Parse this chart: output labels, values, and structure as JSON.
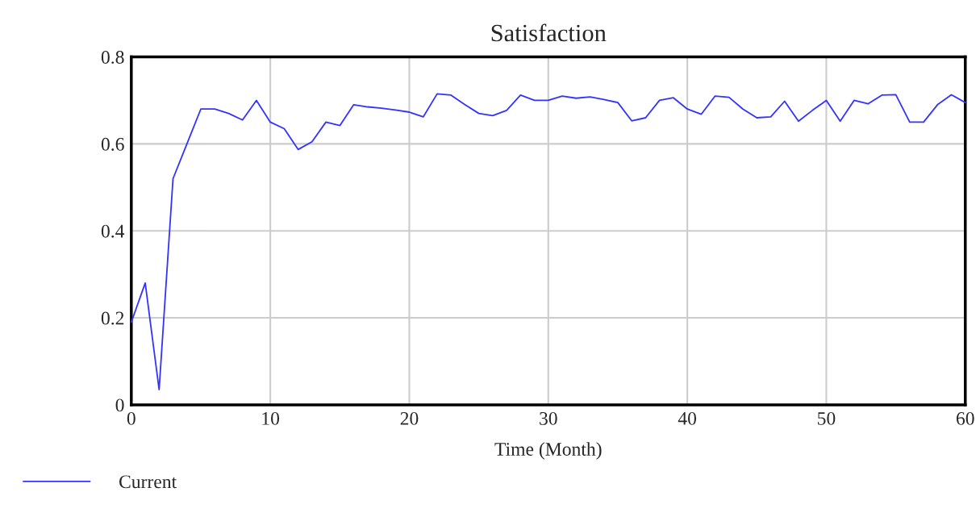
{
  "chart_data": {
    "type": "line",
    "title": "Satisfaction",
    "xlabel": "Time (Month)",
    "x": [
      0,
      1,
      2,
      3,
      4,
      5,
      6,
      7,
      8,
      9,
      10,
      11,
      12,
      13,
      14,
      15,
      16,
      17,
      18,
      19,
      20,
      21,
      22,
      23,
      24,
      25,
      26,
      27,
      28,
      29,
      30,
      31,
      32,
      33,
      34,
      35,
      36,
      37,
      38,
      39,
      40,
      41,
      42,
      43,
      44,
      45,
      46,
      47,
      48,
      49,
      50,
      51,
      52,
      53,
      54,
      55,
      56,
      57,
      58,
      59,
      60
    ],
    "series": [
      {
        "name": "Current",
        "color": "#3333ff",
        "values": [
          0.19,
          0.28,
          0.035,
          0.52,
          0.6,
          0.68,
          0.68,
          0.67,
          0.655,
          0.7,
          0.65,
          0.635,
          0.587,
          0.605,
          0.65,
          0.642,
          0.69,
          0.685,
          0.682,
          0.678,
          0.673,
          0.662,
          0.715,
          0.712,
          0.69,
          0.67,
          0.665,
          0.677,
          0.712,
          0.7,
          0.7,
          0.71,
          0.705,
          0.708,
          0.702,
          0.695,
          0.653,
          0.66,
          0.7,
          0.706,
          0.68,
          0.668,
          0.71,
          0.707,
          0.68,
          0.66,
          0.662,
          0.698,
          0.652,
          0.677,
          0.7,
          0.652,
          0.7,
          0.692,
          0.712,
          0.713,
          0.65,
          0.65,
          0.69,
          0.713,
          0.695
        ]
      }
    ],
    "xlim": [
      0,
      60
    ],
    "ylim": [
      0,
      0.8
    ],
    "xticks": [
      0,
      10,
      20,
      30,
      40,
      50,
      60
    ],
    "yticks": [
      0,
      0.2,
      0.4,
      0.6,
      0.8
    ],
    "grid": true,
    "legend": "bottom left",
    "line_style": "solid",
    "marker": "none"
  }
}
